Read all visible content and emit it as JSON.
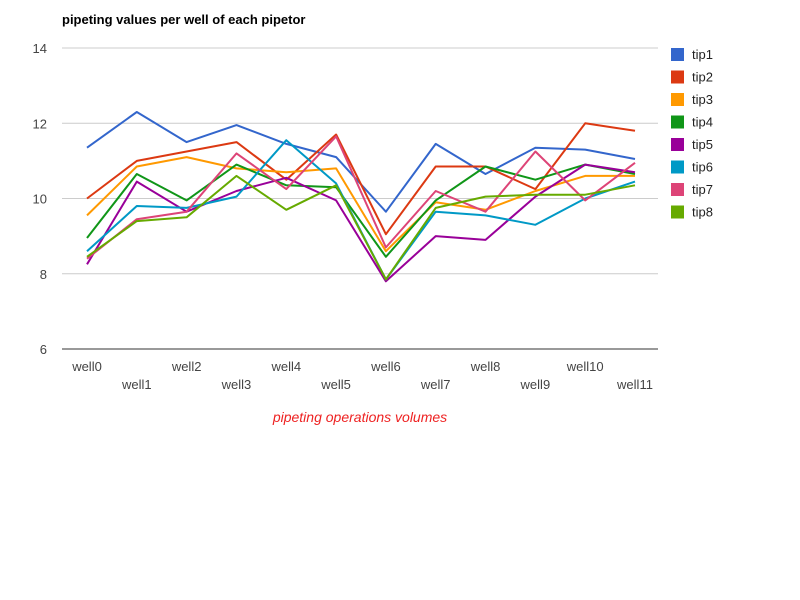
{
  "chart_data": {
    "type": "line",
    "title": "pipeting values per well of each pipetor",
    "xlabel": "pipeting operations volumes",
    "ylabel": "",
    "ylim": [
      6,
      14
    ],
    "yticks": [
      6,
      8,
      10,
      12,
      14
    ],
    "grid": true,
    "legend_position": "right",
    "categories": [
      "well0",
      "well1",
      "well2",
      "well3",
      "well4",
      "well5",
      "well6",
      "well7",
      "well8",
      "well9",
      "well10",
      "well11"
    ],
    "series": [
      {
        "name": "tip1",
        "color": "#3366cc",
        "values": [
          11.35,
          12.3,
          11.5,
          11.95,
          11.45,
          11.1,
          9.65,
          11.45,
          10.65,
          11.35,
          11.3,
          11.05
        ]
      },
      {
        "name": "tip2",
        "color": "#dc3912",
        "values": [
          10.0,
          11.0,
          11.25,
          11.5,
          10.5,
          11.7,
          9.05,
          10.85,
          10.85,
          10.25,
          12.0,
          11.8
        ]
      },
      {
        "name": "tip3",
        "color": "#ff9900",
        "values": [
          9.55,
          10.85,
          11.1,
          10.8,
          10.7,
          10.8,
          8.6,
          9.9,
          9.7,
          10.2,
          10.6,
          10.6
        ]
      },
      {
        "name": "tip4",
        "color": "#109618",
        "values": [
          8.95,
          10.65,
          9.95,
          10.9,
          10.35,
          10.3,
          8.45,
          9.95,
          10.85,
          10.5,
          10.9,
          10.65
        ]
      },
      {
        "name": "tip5",
        "color": "#990099",
        "values": [
          8.25,
          10.45,
          9.65,
          10.2,
          10.55,
          9.95,
          7.8,
          9.0,
          8.9,
          10.05,
          10.9,
          10.7
        ]
      },
      {
        "name": "tip6",
        "color": "#0099c6",
        "values": [
          8.6,
          9.8,
          9.75,
          10.05,
          11.55,
          10.4,
          7.85,
          9.65,
          9.55,
          9.3,
          10.0,
          10.45
        ]
      },
      {
        "name": "tip7",
        "color": "#dd4477",
        "values": [
          8.4,
          9.45,
          9.65,
          11.2,
          10.25,
          11.65,
          8.7,
          10.2,
          9.65,
          11.25,
          9.95,
          10.95
        ]
      },
      {
        "name": "tip8",
        "color": "#66aa00",
        "values": [
          8.45,
          9.4,
          9.5,
          10.6,
          9.7,
          10.35,
          7.85,
          9.75,
          10.05,
          10.1,
          10.1,
          10.35
        ]
      }
    ]
  }
}
